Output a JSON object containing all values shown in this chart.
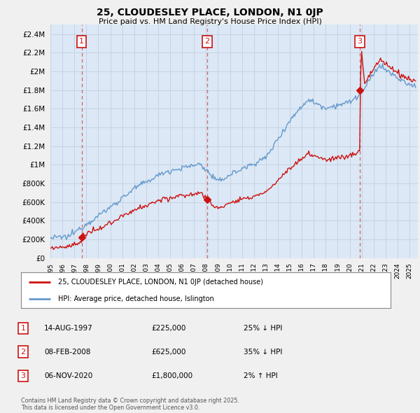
{
  "title": "25, CLOUDESLEY PLACE, LONDON, N1 0JP",
  "subtitle": "Price paid vs. HM Land Registry's House Price Index (HPI)",
  "fig_bg": "#f0f0f0",
  "plot_bg": "#dce8f5",
  "hpi_color": "#6699cc",
  "price_color": "#cc1111",
  "grid_color": "#c0cfe0",
  "vline_color": "#cc4444",
  "ylim": [
    0,
    2500000
  ],
  "yticks": [
    0,
    200000,
    400000,
    600000,
    800000,
    1000000,
    1200000,
    1400000,
    1600000,
    1800000,
    2000000,
    2200000,
    2400000
  ],
  "xlim_start": 1995.0,
  "xlim_end": 2025.7,
  "transactions": [
    {
      "label": "1",
      "date": 1997.617,
      "price": 225000
    },
    {
      "label": "2",
      "date": 2008.1,
      "price": 625000
    },
    {
      "label": "3",
      "date": 2020.85,
      "price": 1800000
    }
  ],
  "legend_entries": [
    "25, CLOUDESLEY PLACE, LONDON, N1 0JP (detached house)",
    "HPI: Average price, detached house, Islington"
  ],
  "table_rows": [
    {
      "num": "1",
      "date": "14-AUG-1997",
      "price": "£225,000",
      "hpi": "25% ↓ HPI"
    },
    {
      "num": "2",
      "date": "08-FEB-2008",
      "price": "£625,000",
      "hpi": "35% ↓ HPI"
    },
    {
      "num": "3",
      "date": "06-NOV-2020",
      "price": "£1,800,000",
      "hpi": "2% ↑ HPI"
    }
  ],
  "footer": "Contains HM Land Registry data © Crown copyright and database right 2025.\nThis data is licensed under the Open Government Licence v3.0."
}
